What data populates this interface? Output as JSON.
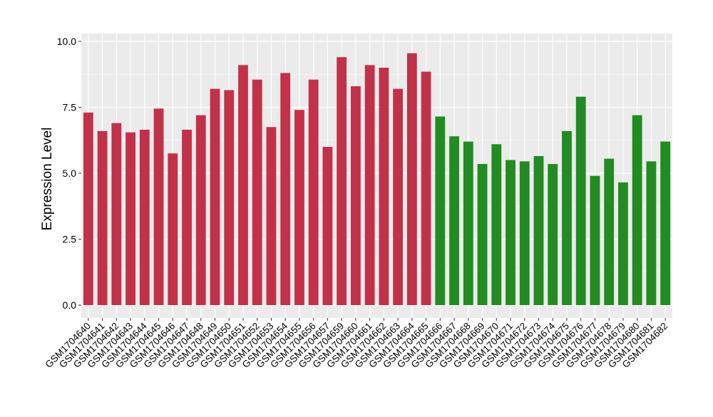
{
  "chart_data": {
    "type": "bar",
    "title": "",
    "xlabel": "",
    "ylabel": "Expression Level",
    "ylim": [
      0,
      10
    ],
    "yticks": [
      0.0,
      2.5,
      5.0,
      7.5,
      10.0
    ],
    "ytick_labels": [
      "0.0",
      "2.5",
      "5.0",
      "7.5",
      "10.0"
    ],
    "grid": true,
    "legend": "none",
    "colors": {
      "group1": "#C1314A",
      "group2": "#228B22",
      "panel_bg": "#EBEBEB",
      "grid": "#FFFFFF"
    },
    "categories": [
      "GSM1704640",
      "GSM1704641",
      "GSM1704642",
      "GSM1704643",
      "GSM1704644",
      "GSM1704645",
      "GSM1704646",
      "GSM1704647",
      "GSM1704648",
      "GSM1704649",
      "GSM1704650",
      "GSM1704651",
      "GSM1704652",
      "GSM1704653",
      "GSM1704654",
      "GSM1704655",
      "GSM1704656",
      "GSM1704657",
      "GSM1704659",
      "GSM1704660",
      "GSM1704661",
      "GSM1704662",
      "GSM1704663",
      "GSM1704664",
      "GSM1704665",
      "GSM1704666",
      "GSM1704667",
      "GSM1704668",
      "GSM1704669",
      "GSM1704670",
      "GSM1704671",
      "GSM1704672",
      "GSM1704673",
      "GSM1704674",
      "GSM1704675",
      "GSM1704676",
      "GSM1704677",
      "GSM1704678",
      "GSM1704679",
      "GSM1704680",
      "GSM1704681",
      "GSM1704682"
    ],
    "values": [
      7.3,
      6.6,
      6.9,
      6.55,
      6.65,
      7.45,
      5.75,
      6.65,
      7.2,
      8.2,
      8.15,
      9.1,
      8.55,
      6.75,
      8.8,
      7.4,
      8.55,
      6.0,
      9.4,
      8.3,
      9.1,
      9.0,
      8.2,
      9.55,
      8.85,
      7.15,
      6.4,
      6.2,
      5.35,
      6.1,
      5.5,
      5.45,
      5.65,
      5.35,
      6.6,
      7.9,
      4.9,
      5.55,
      4.65,
      7.2,
      5.45,
      6.2
    ],
    "groups": [
      1,
      1,
      1,
      1,
      1,
      1,
      1,
      1,
      1,
      1,
      1,
      1,
      1,
      1,
      1,
      1,
      1,
      1,
      1,
      1,
      1,
      1,
      1,
      1,
      1,
      2,
      2,
      2,
      2,
      2,
      2,
      2,
      2,
      2,
      2,
      2,
      2,
      2,
      2,
      2,
      2,
      2
    ]
  }
}
